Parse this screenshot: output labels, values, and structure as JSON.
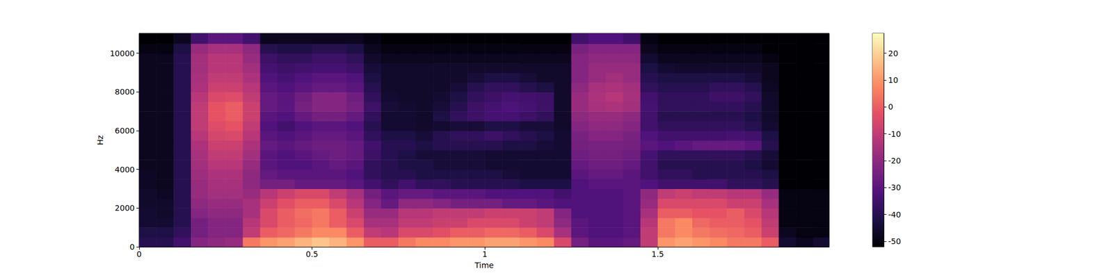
{
  "chart_data": {
    "type": "heatmap",
    "x_label": "Time",
    "y_label": "Hz",
    "color": "magma",
    "xlim": [
      0,
      1.996
    ],
    "ylim": [
      0,
      11025
    ],
    "xticks": [
      0,
      0.5,
      1,
      1.5
    ],
    "yticks": [
      0,
      2000,
      4000,
      6000,
      8000,
      10000
    ],
    "colorbar": {
      "range": [
        -52.1,
        27.4
      ],
      "ticks": [
        -50,
        -40,
        -30,
        -20,
        -10,
        0,
        10,
        20
      ]
    },
    "x_edges": [
      0,
      0.05,
      0.1,
      0.15,
      0.2,
      0.25,
      0.3,
      0.35,
      0.4,
      0.45,
      0.5,
      0.55,
      0.6,
      0.65,
      0.7,
      0.75,
      0.8,
      0.85,
      0.9,
      0.95,
      1.0,
      1.05,
      1.1,
      1.15,
      1.2,
      1.25,
      1.3,
      1.35,
      1.4,
      1.45,
      1.5,
      1.55,
      1.6,
      1.65,
      1.7,
      1.75,
      1.8,
      1.85,
      1.9,
      1.95,
      1.996
    ],
    "y_edges": [
      0,
      500,
      1000,
      1500,
      2000,
      2500,
      3000,
      3500,
      4000,
      4500,
      5000,
      5500,
      6000,
      6500,
      7000,
      7500,
      8000,
      8500,
      9000,
      9500,
      10000,
      10500,
      11025
    ],
    "cells": [
      [
        -40,
        -40,
        -35,
        -22,
        -20,
        -18,
        5,
        10,
        12,
        15,
        18,
        15,
        10,
        0,
        0,
        5,
        8,
        8,
        10,
        10,
        12,
        12,
        10,
        8,
        -5,
        -25,
        -30,
        -30,
        -28,
        -10,
        10,
        12,
        10,
        8,
        5,
        5,
        0,
        -45,
        -48,
        -45
      ],
      [
        -42,
        -42,
        -38,
        -25,
        -22,
        -22,
        -10,
        0,
        2,
        5,
        8,
        8,
        0,
        -10,
        -12,
        -5,
        -5,
        -3,
        0,
        0,
        2,
        2,
        0,
        -5,
        -15,
        -30,
        -32,
        -32,
        -30,
        -10,
        5,
        8,
        5,
        3,
        2,
        0,
        -8,
        -48,
        -50,
        -50
      ],
      [
        -45,
        -45,
        -40,
        -25,
        -22,
        -22,
        -12,
        -5,
        0,
        2,
        5,
        0,
        -5,
        -15,
        -15,
        -10,
        -10,
        -8,
        -8,
        -5,
        -5,
        -5,
        -8,
        -10,
        -20,
        -30,
        -32,
        -32,
        -30,
        -12,
        5,
        8,
        2,
        0,
        0,
        -2,
        -10,
        -50,
        -50,
        -50
      ],
      [
        -45,
        -46,
        -40,
        -22,
        -20,
        -20,
        -15,
        -5,
        0,
        3,
        5,
        0,
        -8,
        -18,
        -18,
        -12,
        -12,
        -10,
        -10,
        -10,
        -8,
        -8,
        -8,
        -10,
        -22,
        -32,
        -32,
        -32,
        -30,
        -15,
        0,
        0,
        -2,
        -2,
        0,
        -5,
        -12,
        -50,
        -50,
        -50
      ],
      [
        -46,
        -46,
        -40,
        -20,
        -18,
        -18,
        -15,
        -8,
        -3,
        0,
        0,
        -5,
        -12,
        -22,
        -28,
        -20,
        -20,
        -22,
        -25,
        -25,
        -25,
        -28,
        -28,
        -30,
        -32,
        -32,
        -32,
        -32,
        -30,
        -18,
        -5,
        -5,
        -5,
        -5,
        -8,
        -8,
        -15,
        -50,
        -50,
        -50
      ],
      [
        -46,
        -47,
        -40,
        -18,
        -16,
        -16,
        -18,
        -12,
        -8,
        -5,
        -5,
        -10,
        -15,
        -25,
        -30,
        -28,
        -28,
        -30,
        -30,
        -30,
        -32,
        -32,
        -32,
        -32,
        -35,
        -32,
        -32,
        -32,
        -30,
        -20,
        -10,
        -8,
        -10,
        -10,
        -12,
        -12,
        -18,
        -50,
        -50,
        -50
      ],
      [
        -47,
        -48,
        -40,
        -18,
        -15,
        -15,
        -20,
        -25,
        -25,
        -28,
        -28,
        -28,
        -30,
        -35,
        -38,
        -35,
        -38,
        -38,
        -40,
        -40,
        -40,
        -40,
        -42,
        -42,
        -42,
        -32,
        -30,
        -30,
        -30,
        -32,
        -35,
        -35,
        -35,
        -35,
        -38,
        -38,
        -40,
        -52,
        -52,
        -52
      ],
      [
        -47,
        -48,
        -40,
        -17,
        -14,
        -14,
        -20,
        -28,
        -30,
        -30,
        -30,
        -30,
        -32,
        -38,
        -40,
        -40,
        -42,
        -42,
        -42,
        -42,
        -42,
        -44,
        -45,
        -45,
        -45,
        -30,
        -28,
        -28,
        -30,
        -35,
        -38,
        -38,
        -40,
        -40,
        -40,
        -40,
        -42,
        -52,
        -52,
        -52
      ],
      [
        -48,
        -48,
        -40,
        -16,
        -12,
        -12,
        -18,
        -30,
        -32,
        -32,
        -30,
        -28,
        -30,
        -38,
        -40,
        -42,
        -42,
        -44,
        -44,
        -44,
        -45,
        -45,
        -45,
        -45,
        -45,
        -28,
        -26,
        -26,
        -28,
        -35,
        -40,
        -40,
        -40,
        -40,
        -40,
        -42,
        -45,
        -52,
        -52,
        -52
      ],
      [
        -48,
        -48,
        -40,
        -15,
        -10,
        -10,
        -16,
        -30,
        -32,
        -30,
        -28,
        -26,
        -28,
        -36,
        -40,
        -42,
        -44,
        -44,
        -44,
        -44,
        -45,
        -45,
        -45,
        -45,
        -45,
        -26,
        -25,
        -25,
        -26,
        -34,
        -38,
        -38,
        -38,
        -38,
        -38,
        -40,
        -44,
        -52,
        -52,
        -52
      ],
      [
        -48,
        -48,
        -40,
        -14,
        -8,
        -8,
        -14,
        -28,
        -30,
        -28,
        -26,
        -26,
        -28,
        -35,
        -40,
        -40,
        -42,
        -40,
        -40,
        -40,
        -40,
        -42,
        -42,
        -44,
        -45,
        -25,
        -24,
        -24,
        -25,
        -30,
        -32,
        -30,
        -28,
        -28,
        -28,
        -30,
        -40,
        -52,
        -52,
        -52
      ],
      [
        -48,
        -48,
        -40,
        -12,
        -6,
        -5,
        -12,
        -30,
        -32,
        -30,
        -28,
        -28,
        -30,
        -38,
        -42,
        -42,
        -44,
        -40,
        -38,
        -38,
        -36,
        -38,
        -40,
        -42,
        -45,
        -24,
        -22,
        -22,
        -24,
        -32,
        -35,
        -35,
        -35,
        -35,
        -34,
        -35,
        -42,
        -52,
        -52,
        -52
      ],
      [
        -48,
        -48,
        -40,
        -10,
        -4,
        -2,
        -10,
        -32,
        -35,
        -32,
        -30,
        -30,
        -32,
        -40,
        -45,
        -45,
        -46,
        -45,
        -44,
        -44,
        -42,
        -42,
        -44,
        -44,
        -46,
        -22,
        -20,
        -20,
        -22,
        -35,
        -38,
        -38,
        -38,
        -38,
        -38,
        -40,
        -45,
        -52,
        -52,
        -52
      ],
      [
        -48,
        -48,
        -40,
        -10,
        -2,
        0,
        -8,
        -30,
        -32,
        -28,
        -25,
        -25,
        -28,
        -38,
        -45,
        -45,
        -46,
        -42,
        -38,
        -36,
        -34,
        -34,
        -36,
        -38,
        -46,
        -20,
        -18,
        -18,
        -20,
        -35,
        -40,
        -40,
        -40,
        -40,
        -40,
        -42,
        -46,
        -52,
        -52,
        -52
      ],
      [
        -48,
        -48,
        -40,
        -10,
        -2,
        0,
        -8,
        -28,
        -30,
        -25,
        -22,
        -22,
        -25,
        -36,
        -44,
        -45,
        -46,
        -44,
        -40,
        -36,
        -34,
        -33,
        -34,
        -36,
        -46,
        -18,
        -15,
        -14,
        -16,
        -34,
        -38,
        -38,
        -38,
        -38,
        -38,
        -40,
        -46,
        -52,
        -52,
        -52
      ],
      [
        -48,
        -48,
        -40,
        -12,
        -5,
        -4,
        -10,
        -28,
        -30,
        -26,
        -22,
        -22,
        -26,
        -38,
        -45,
        -46,
        -46,
        -45,
        -42,
        -38,
        -36,
        -34,
        -35,
        -36,
        -46,
        -18,
        -14,
        -12,
        -15,
        -35,
        -38,
        -38,
        -38,
        -36,
        -36,
        -38,
        -46,
        -52,
        -52,
        -52
      ],
      [
        -48,
        -48,
        -40,
        -14,
        -8,
        -8,
        -12,
        -30,
        -32,
        -30,
        -28,
        -28,
        -30,
        -40,
        -46,
        -46,
        -46,
        -46,
        -44,
        -40,
        -38,
        -38,
        -40,
        -42,
        -46,
        -20,
        -15,
        -14,
        -16,
        -38,
        -40,
        -40,
        -40,
        -38,
        -38,
        -40,
        -47,
        -52,
        -52,
        -52
      ],
      [
        -48,
        -48,
        -40,
        -15,
        -10,
        -10,
        -14,
        -32,
        -34,
        -32,
        -30,
        -30,
        -32,
        -42,
        -46,
        -46,
        -46,
        -46,
        -46,
        -44,
        -42,
        -42,
        -44,
        -46,
        -46,
        -22,
        -18,
        -16,
        -18,
        -40,
        -42,
        -42,
        -42,
        -42,
        -42,
        -44,
        -48,
        -52,
        -52,
        -52
      ],
      [
        -48,
        -48,
        -40,
        -16,
        -12,
        -12,
        -16,
        -34,
        -36,
        -35,
        -34,
        -34,
        -36,
        -44,
        -46,
        -46,
        -46,
        -46,
        -46,
        -46,
        -46,
        -46,
        -46,
        -46,
        -46,
        -22,
        -18,
        -18,
        -18,
        -42,
        -45,
        -46,
        -46,
        -46,
        -46,
        -46,
        -48,
        -52,
        -52,
        -52
      ],
      [
        -48,
        -48,
        -40,
        -16,
        -12,
        -12,
        -18,
        -36,
        -38,
        -38,
        -36,
        -36,
        -38,
        -46,
        -48,
        -48,
        -48,
        -48,
        -48,
        -48,
        -48,
        -48,
        -48,
        -48,
        -48,
        -22,
        -20,
        -20,
        -20,
        -45,
        -48,
        -48,
        -48,
        -48,
        -48,
        -48,
        -50,
        -52,
        -52,
        -52
      ],
      [
        -50,
        -50,
        -42,
        -18,
        -15,
        -15,
        -20,
        -40,
        -42,
        -42,
        -40,
        -40,
        -42,
        -48,
        -50,
        -50,
        -50,
        -50,
        -50,
        -50,
        -50,
        -50,
        -50,
        -50,
        -50,
        -24,
        -22,
        -22,
        -22,
        -48,
        -50,
        -50,
        -50,
        -50,
        -50,
        -50,
        -52,
        -52,
        -52,
        -52
      ],
      [
        -52,
        -52,
        -48,
        -35,
        -30,
        -30,
        -35,
        -48,
        -48,
        -48,
        -48,
        -48,
        -48,
        -50,
        -52,
        -52,
        -52,
        -52,
        -52,
        -52,
        -52,
        -52,
        -52,
        -52,
        -52,
        -35,
        -32,
        -32,
        -35,
        -50,
        -52,
        -52,
        -52,
        -52,
        -52,
        -52,
        -52,
        -52,
        -52,
        -52
      ]
    ]
  }
}
